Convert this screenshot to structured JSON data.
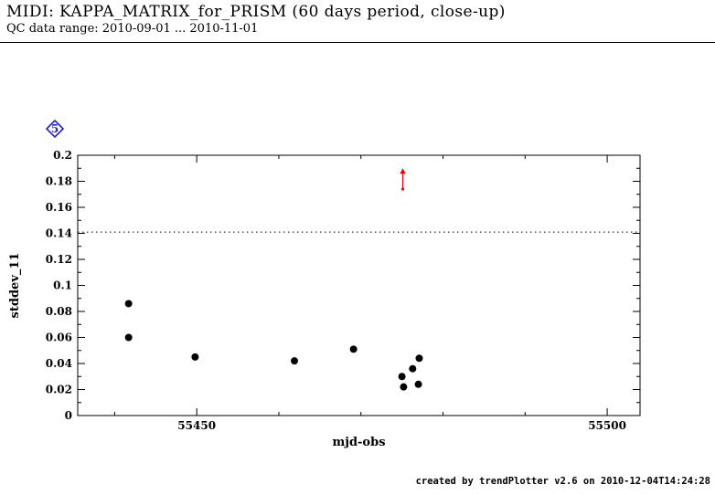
{
  "header": {
    "title": "MIDI: KAPPA_MATRIX_for_PRISM (60 days period, close-up)",
    "subtitle": "QC data range: 2010-09-01 ... 2010-11-01"
  },
  "page_marker": {
    "label": "5",
    "color": "#2222cc"
  },
  "chart_data": {
    "type": "scatter",
    "title": "",
    "xlabel": "mjd-obs",
    "ylabel": "stddev_11",
    "xlim": [
      55435.5,
      55504
    ],
    "ylim": [
      0,
      0.2
    ],
    "x_major_ticks": [
      55450,
      55500
    ],
    "x_major_tick_labels": [
      "55450",
      "55500"
    ],
    "x_minor_ticks": [
      55440,
      55450,
      55460,
      55470,
      55480,
      55490,
      55500
    ],
    "y_ticks": [
      0,
      0.02,
      0.04,
      0.06,
      0.08,
      0.1,
      0.12,
      0.14,
      0.16,
      0.18,
      0.2
    ],
    "y_tick_labels": [
      "0",
      "0.02",
      "0.04",
      "0.06",
      "0.08",
      "0.1",
      "0.12",
      "0.14",
      "0.16",
      "0.18",
      "0.2"
    ],
    "y_minor_ticks": [
      0.01,
      0.03,
      0.05,
      0.07,
      0.09,
      0.11,
      0.13,
      0.15,
      0.17,
      0.19
    ],
    "grid": false,
    "threshold": {
      "y": 0.141,
      "color": "#000000",
      "style": "dotted"
    },
    "point_color": "#000000",
    "points": [
      [
        55441.7,
        0.086
      ],
      [
        55441.7,
        0.06
      ],
      [
        55449.8,
        0.045
      ],
      [
        55461.9,
        0.042
      ],
      [
        55469.1,
        0.051
      ],
      [
        55475.0,
        0.03
      ],
      [
        55475.2,
        0.022
      ],
      [
        55476.3,
        0.036
      ],
      [
        55477.1,
        0.044
      ],
      [
        55477.0,
        0.024
      ]
    ],
    "outlier_arrow": {
      "x": 55475.1,
      "y_base": 0.174,
      "y_tip": 0.19,
      "color": "#ee0000"
    }
  },
  "footer": {
    "credit": "created by trendPlotter v2.6 on 2010-12-04T14:24:28"
  }
}
